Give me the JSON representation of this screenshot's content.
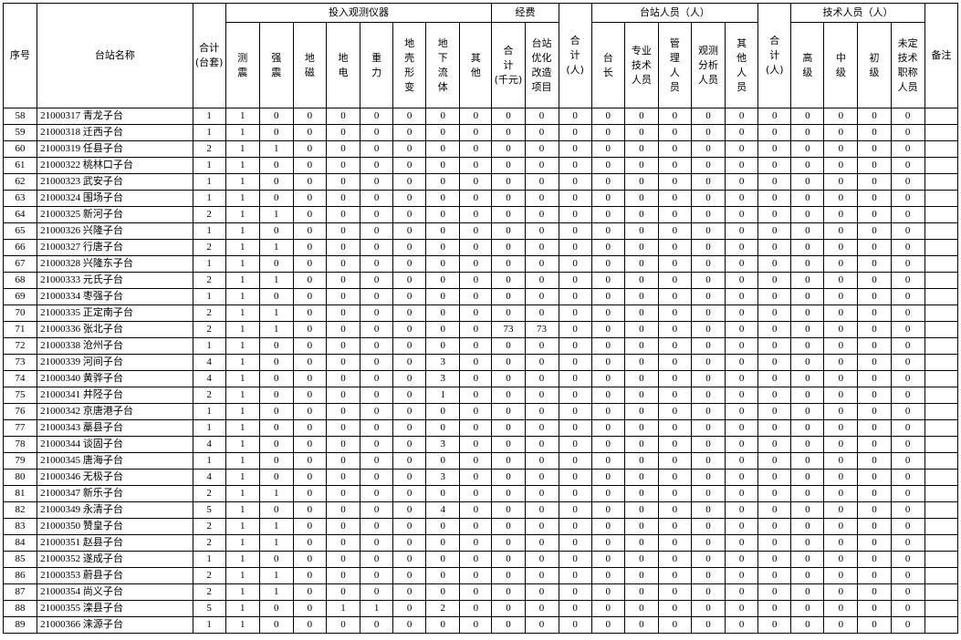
{
  "header": {
    "groups": [
      "投入观测仪器",
      "经费",
      "台站人员（人）",
      "技术人员（人）"
    ],
    "columns": [
      "序号",
      "台站名称",
      "合计\n(台套)",
      "测\n震",
      "强\n震",
      "地\n磁",
      "地\n电",
      "重\n力",
      "地\n壳\n形\n变",
      "地\n下\n流\n体",
      "其\n他",
      "合\n计\n(千元)",
      "台站\n优化\n改造\n项目",
      "合\n计\n(人)",
      "台\n长",
      "专业\n技术\n人员",
      "管\n理\n人\n员",
      "观测\n分析\n人员",
      "其\n他\n人\n员",
      "合\n计\n(人)",
      "高\n级",
      "中\n级",
      "初\n级",
      "未定\n技术\n职称\n人员",
      "备注"
    ]
  },
  "rows": [
    [
      58,
      "21000317 青龙子台",
      1,
      1,
      0,
      0,
      0,
      0,
      0,
      0,
      0,
      0,
      0,
      0,
      0,
      0,
      0,
      0,
      0,
      0,
      0,
      0,
      0,
      0
    ],
    [
      59,
      "21000318 迁西子台",
      1,
      1,
      0,
      0,
      0,
      0,
      0,
      0,
      0,
      0,
      0,
      0,
      0,
      0,
      0,
      0,
      0,
      0,
      0,
      0,
      0,
      0
    ],
    [
      60,
      "21000319 任县子台",
      2,
      1,
      1,
      0,
      0,
      0,
      0,
      0,
      0,
      0,
      0,
      0,
      0,
      0,
      0,
      0,
      0,
      0,
      0,
      0,
      0,
      0
    ],
    [
      61,
      "21000322 桃林口子台",
      1,
      1,
      0,
      0,
      0,
      0,
      0,
      0,
      0,
      0,
      0,
      0,
      0,
      0,
      0,
      0,
      0,
      0,
      0,
      0,
      0,
      0
    ],
    [
      62,
      "21000323 武安子台",
      1,
      1,
      0,
      0,
      0,
      0,
      0,
      0,
      0,
      0,
      0,
      0,
      0,
      0,
      0,
      0,
      0,
      0,
      0,
      0,
      0,
      0
    ],
    [
      63,
      "21000324 围场子台",
      1,
      1,
      0,
      0,
      0,
      0,
      0,
      0,
      0,
      0,
      0,
      0,
      0,
      0,
      0,
      0,
      0,
      0,
      0,
      0,
      0,
      0
    ],
    [
      64,
      "21000325 新河子台",
      2,
      1,
      1,
      0,
      0,
      0,
      0,
      0,
      0,
      0,
      0,
      0,
      0,
      0,
      0,
      0,
      0,
      0,
      0,
      0,
      0,
      0
    ],
    [
      65,
      "21000326 兴隆子台",
      1,
      1,
      0,
      0,
      0,
      0,
      0,
      0,
      0,
      0,
      0,
      0,
      0,
      0,
      0,
      0,
      0,
      0,
      0,
      0,
      0,
      0
    ],
    [
      66,
      "21000327 行唐子台",
      2,
      1,
      1,
      0,
      0,
      0,
      0,
      0,
      0,
      0,
      0,
      0,
      0,
      0,
      0,
      0,
      0,
      0,
      0,
      0,
      0,
      0
    ],
    [
      67,
      "21000328 兴隆东子台",
      1,
      1,
      0,
      0,
      0,
      0,
      0,
      0,
      0,
      0,
      0,
      0,
      0,
      0,
      0,
      0,
      0,
      0,
      0,
      0,
      0,
      0
    ],
    [
      68,
      "21000333 元氏子台",
      2,
      1,
      1,
      0,
      0,
      0,
      0,
      0,
      0,
      0,
      0,
      0,
      0,
      0,
      0,
      0,
      0,
      0,
      0,
      0,
      0,
      0
    ],
    [
      69,
      "21000334 枣强子台",
      1,
      1,
      0,
      0,
      0,
      0,
      0,
      0,
      0,
      0,
      0,
      0,
      0,
      0,
      0,
      0,
      0,
      0,
      0,
      0,
      0,
      0
    ],
    [
      70,
      "21000335 正定南子台",
      2,
      1,
      1,
      0,
      0,
      0,
      0,
      0,
      0,
      0,
      0,
      0,
      0,
      0,
      0,
      0,
      0,
      0,
      0,
      0,
      0,
      0
    ],
    [
      71,
      "21000336 张北子台",
      2,
      1,
      1,
      0,
      0,
      0,
      0,
      0,
      0,
      73,
      73,
      0,
      0,
      0,
      0,
      0,
      0,
      0,
      0,
      0,
      0,
      0
    ],
    [
      72,
      "21000338 沧州子台",
      1,
      1,
      0,
      0,
      0,
      0,
      0,
      0,
      0,
      0,
      0,
      0,
      0,
      0,
      0,
      0,
      0,
      0,
      0,
      0,
      0,
      0
    ],
    [
      73,
      "21000339 河间子台",
      4,
      1,
      0,
      0,
      0,
      0,
      0,
      3,
      0,
      0,
      0,
      0,
      0,
      0,
      0,
      0,
      0,
      0,
      0,
      0,
      0,
      0
    ],
    [
      74,
      "21000340 黄骅子台",
      4,
      1,
      0,
      0,
      0,
      0,
      0,
      3,
      0,
      0,
      0,
      0,
      0,
      0,
      0,
      0,
      0,
      0,
      0,
      0,
      0,
      0
    ],
    [
      75,
      "21000341 井陉子台",
      2,
      1,
      0,
      0,
      0,
      0,
      0,
      1,
      0,
      0,
      0,
      0,
      0,
      0,
      0,
      0,
      0,
      0,
      0,
      0,
      0,
      0
    ],
    [
      76,
      "21000342 京唐港子台",
      1,
      1,
      0,
      0,
      0,
      0,
      0,
      0,
      0,
      0,
      0,
      0,
      0,
      0,
      0,
      0,
      0,
      0,
      0,
      0,
      0,
      0
    ],
    [
      77,
      "21000343 藁县子台",
      1,
      1,
      0,
      0,
      0,
      0,
      0,
      0,
      0,
      0,
      0,
      0,
      0,
      0,
      0,
      0,
      0,
      0,
      0,
      0,
      0,
      0
    ],
    [
      78,
      "21000344 谈固子台",
      4,
      1,
      0,
      0,
      0,
      0,
      0,
      3,
      0,
      0,
      0,
      0,
      0,
      0,
      0,
      0,
      0,
      0,
      0,
      0,
      0,
      0
    ],
    [
      79,
      "21000345 唐海子台",
      1,
      1,
      0,
      0,
      0,
      0,
      0,
      0,
      0,
      0,
      0,
      0,
      0,
      0,
      0,
      0,
      0,
      0,
      0,
      0,
      0,
      0
    ],
    [
      80,
      "21000346 无极子台",
      4,
      1,
      0,
      0,
      0,
      0,
      0,
      3,
      0,
      0,
      0,
      0,
      0,
      0,
      0,
      0,
      0,
      0,
      0,
      0,
      0,
      0
    ],
    [
      81,
      "21000347 新乐子台",
      2,
      1,
      1,
      0,
      0,
      0,
      0,
      0,
      0,
      0,
      0,
      0,
      0,
      0,
      0,
      0,
      0,
      0,
      0,
      0,
      0,
      0
    ],
    [
      82,
      "21000349 永清子台",
      5,
      1,
      0,
      0,
      0,
      0,
      0,
      4,
      0,
      0,
      0,
      0,
      0,
      0,
      0,
      0,
      0,
      0,
      0,
      0,
      0,
      0
    ],
    [
      83,
      "21000350 赞皇子台",
      2,
      1,
      1,
      0,
      0,
      0,
      0,
      0,
      0,
      0,
      0,
      0,
      0,
      0,
      0,
      0,
      0,
      0,
      0,
      0,
      0,
      0
    ],
    [
      84,
      "21000351 赵县子台",
      2,
      1,
      1,
      0,
      0,
      0,
      0,
      0,
      0,
      0,
      0,
      0,
      0,
      0,
      0,
      0,
      0,
      0,
      0,
      0,
      0,
      0
    ],
    [
      85,
      "21000352 遂成子台",
      1,
      1,
      0,
      0,
      0,
      0,
      0,
      0,
      0,
      0,
      0,
      0,
      0,
      0,
      0,
      0,
      0,
      0,
      0,
      0,
      0,
      0
    ],
    [
      86,
      "21000353 蔚县子台",
      2,
      1,
      1,
      0,
      0,
      0,
      0,
      0,
      0,
      0,
      0,
      0,
      0,
      0,
      0,
      0,
      0,
      0,
      0,
      0,
      0,
      0
    ],
    [
      87,
      "21000354 尚义子台",
      2,
      1,
      1,
      0,
      0,
      0,
      0,
      0,
      0,
      0,
      0,
      0,
      0,
      0,
      0,
      0,
      0,
      0,
      0,
      0,
      0,
      0
    ],
    [
      88,
      "21000355 滦县子台",
      5,
      1,
      0,
      0,
      1,
      1,
      0,
      2,
      0,
      0,
      0,
      0,
      0,
      0,
      0,
      0,
      0,
      0,
      0,
      0,
      0,
      0
    ],
    [
      89,
      "21000366 涞源子台",
      1,
      1,
      0,
      0,
      0,
      0,
      0,
      0,
      0,
      0,
      0,
      0,
      0,
      0,
      0,
      0,
      0,
      0,
      0,
      0,
      0,
      0
    ]
  ]
}
